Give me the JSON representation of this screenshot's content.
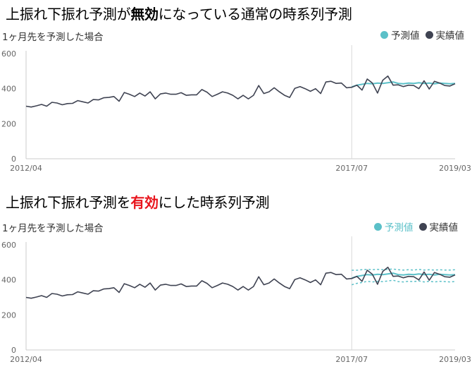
{
  "titles": {
    "top_pre": "上振れ下振れ予測が",
    "top_bold": "無効",
    "top_post": "になっている通常の時系列予測",
    "bottom_pre": "上振れ下振れ予測を",
    "bottom_red": "有効",
    "bottom_post": "にした時系列予測"
  },
  "subtitle": "1ヶ月先を予測した場合",
  "legend": {
    "forecast": "予測値",
    "actual": "実績値"
  },
  "colors": {
    "actual": "#3f4352",
    "forecast": "#5bc0c8",
    "band": "#5bc0c8",
    "axis": "#cccccc"
  },
  "chart_data": [
    {
      "type": "line",
      "title": "上振れ下振れ予測が無効になっている通常の時系列予測",
      "subtitle": "1ヶ月先を予測した場合",
      "x_start": "2012-04",
      "x_end": "2019-03",
      "forecast_start": "2017-07",
      "x_ticks": [
        "2012/04",
        "2017/07",
        "2019/03"
      ],
      "y_ticks": [
        0,
        200,
        400,
        600
      ],
      "ylim": [
        0,
        600
      ],
      "confidence_band": false,
      "series": [
        {
          "name": "実績値",
          "values": [
            300,
            295,
            302,
            310,
            300,
            322,
            318,
            308,
            315,
            316,
            332,
            325,
            318,
            338,
            336,
            348,
            350,
            355,
            328,
            378,
            368,
            355,
            375,
            358,
            382,
            342,
            370,
            375,
            368,
            368,
            377,
            362,
            365,
            365,
            395,
            380,
            355,
            368,
            382,
            375,
            362,
            342,
            362,
            342,
            362,
            418,
            372,
            382,
            405,
            382,
            362,
            350,
            402,
            412,
            400,
            385,
            400,
            372,
            438,
            442,
            430,
            432,
            405,
            408,
            420,
            392,
            455,
            432,
            375,
            448,
            472,
            420,
            422,
            412,
            420,
            418,
            400,
            445,
            398,
            442,
            432,
            418,
            415,
            428
          ]
        },
        {
          "name": "予測値",
          "start": "2017-07",
          "values": [
            410,
            420,
            425,
            430,
            428,
            432,
            430,
            434,
            438,
            430,
            428,
            432,
            430,
            434,
            430,
            432,
            428,
            432,
            430,
            428,
            430
          ]
        }
      ]
    },
    {
      "type": "line",
      "title": "上振れ下振れ予測を有効にした時系列予測",
      "subtitle": "1ヶ月先を予測した場合",
      "x_start": "2012-04",
      "x_end": "2019-03",
      "forecast_start": "2017-07",
      "x_ticks": [
        "2012/04",
        "2017/07",
        "2019/03"
      ],
      "y_ticks": [
        0,
        200,
        400,
        600
      ],
      "ylim": [
        0,
        600
      ],
      "confidence_band": true,
      "band_upper": [
        455,
        455,
        458,
        460,
        458,
        460,
        458,
        460,
        462,
        458,
        456,
        458,
        456,
        460,
        456,
        458,
        456,
        458,
        456,
        456,
        458
      ],
      "band_lower": [
        372,
        380,
        385,
        392,
        388,
        392,
        390,
        394,
        398,
        390,
        388,
        392,
        390,
        394,
        388,
        392,
        388,
        392,
        390,
        388,
        390
      ],
      "series": [
        {
          "name": "実績値",
          "values": [
            300,
            295,
            302,
            310,
            300,
            322,
            318,
            308,
            315,
            316,
            332,
            325,
            318,
            338,
            336,
            348,
            350,
            355,
            328,
            378,
            368,
            355,
            375,
            358,
            382,
            342,
            370,
            375,
            368,
            368,
            377,
            362,
            365,
            365,
            395,
            380,
            355,
            368,
            382,
            375,
            362,
            342,
            362,
            342,
            362,
            418,
            372,
            382,
            405,
            382,
            362,
            350,
            402,
            412,
            400,
            385,
            400,
            372,
            438,
            442,
            430,
            432,
            405,
            408,
            420,
            392,
            455,
            432,
            375,
            448,
            472,
            420,
            422,
            412,
            420,
            418,
            400,
            445,
            398,
            442,
            432,
            418,
            415,
            428
          ]
        },
        {
          "name": "予測値",
          "start": "2017-07",
          "values": [
            410,
            420,
            425,
            430,
            428,
            432,
            430,
            434,
            438,
            430,
            428,
            432,
            430,
            434,
            430,
            432,
            428,
            432,
            430,
            428,
            430
          ]
        }
      ]
    }
  ]
}
